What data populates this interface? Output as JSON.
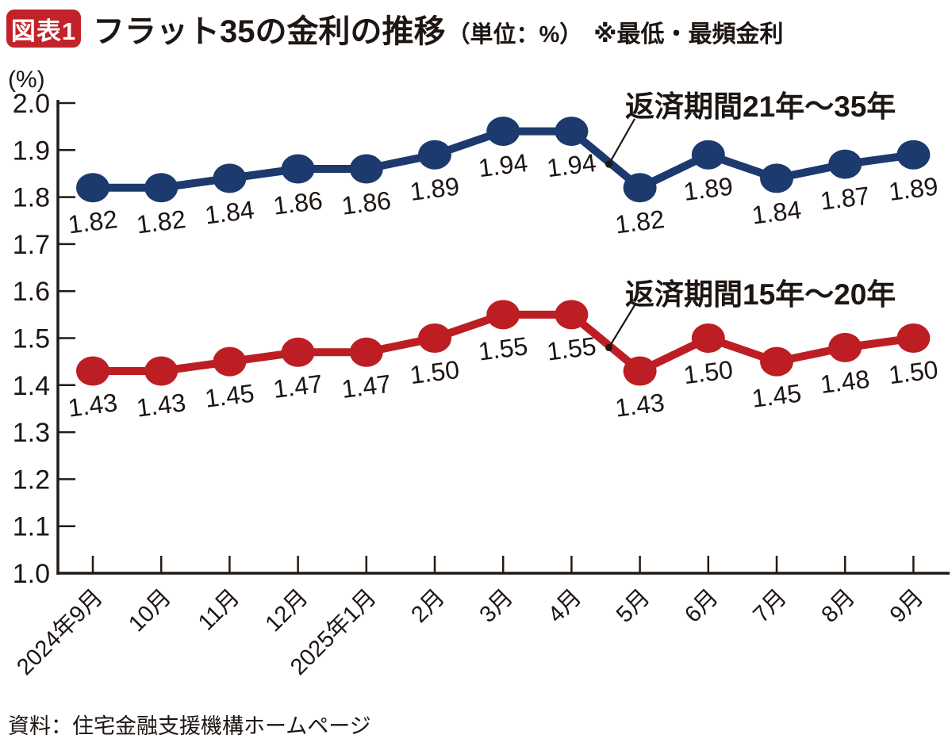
{
  "colors": {
    "badge_red": "#c2232b",
    "series_navy": "#1c3a6d",
    "series_red": "#bc1e24",
    "axis": "#221a15",
    "text": "#1d1613"
  },
  "chart_data": {
    "type": "line",
    "figure_label": "図表1",
    "title": "フラット35の金利の推移",
    "unit_label": "（単位：%）",
    "note": "※最低・最頻金利",
    "yaxis_unit": "(%)",
    "categories": [
      "2024年9月",
      "10月",
      "11月",
      "12月",
      "2025年1月",
      "2月",
      "3月",
      "4月",
      "5月",
      "6月",
      "7月",
      "8月",
      "9月"
    ],
    "series": [
      {
        "name": "返済期間21年～35年",
        "color": "#1c3a6d",
        "values": [
          1.82,
          1.82,
          1.84,
          1.86,
          1.86,
          1.89,
          1.94,
          1.94,
          1.82,
          1.89,
          1.84,
          1.87,
          1.89
        ]
      },
      {
        "name": "返済期間15年～20年",
        "color": "#bc1e24",
        "values": [
          1.43,
          1.43,
          1.45,
          1.47,
          1.47,
          1.5,
          1.55,
          1.55,
          1.43,
          1.5,
          1.45,
          1.48,
          1.5
        ]
      }
    ],
    "ylim": [
      1.0,
      2.0
    ],
    "ytick_step": 0.1,
    "grid": "off",
    "legend_position": "inline-annotations",
    "value_labels": "two-decimals under each point",
    "source": "資料：住宅金融支援機構ホームページ"
  }
}
